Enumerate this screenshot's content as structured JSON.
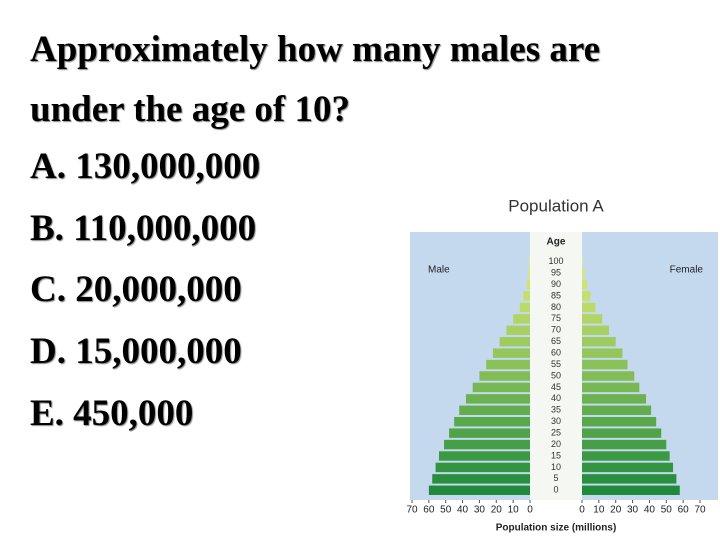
{
  "question": {
    "lines": [
      "Approximately how many males are",
      "under the age of 10?"
    ],
    "options": [
      "A. 130,000,000",
      "B. 110,000,000",
      "C. 20,000,000",
      "D. 15,000,000",
      "E. 450,000"
    ]
  },
  "chart_data": {
    "type": "pyramid",
    "title": "Population A",
    "center_label": "Age",
    "left_label": "Male",
    "right_label": "Female",
    "x_label": "Population size (millions)",
    "categories": [
      0,
      5,
      10,
      15,
      20,
      25,
      30,
      35,
      40,
      45,
      50,
      55,
      60,
      65,
      70,
      75,
      80,
      85,
      90,
      95,
      100
    ],
    "series": [
      {
        "name": "Male",
        "values": [
          60,
          58,
          56,
          54,
          51,
          48,
          45,
          42,
          38,
          34,
          30,
          26,
          22,
          18,
          14,
          10,
          6,
          4,
          2,
          1,
          0.5
        ]
      },
      {
        "name": "Female",
        "values": [
          58,
          56,
          54,
          52,
          50,
          47,
          44,
          41,
          38,
          34,
          31,
          27,
          24,
          20,
          16,
          12,
          8,
          5,
          3,
          1.5,
          0.5
        ]
      }
    ],
    "xlim": [
      0,
      70
    ],
    "xticks": [
      0,
      10,
      20,
      30,
      40,
      50,
      60,
      70
    ],
    "color_bottom": "#1f8a3b",
    "color_top": "#e2ee72",
    "background": "#c5d9ee"
  }
}
